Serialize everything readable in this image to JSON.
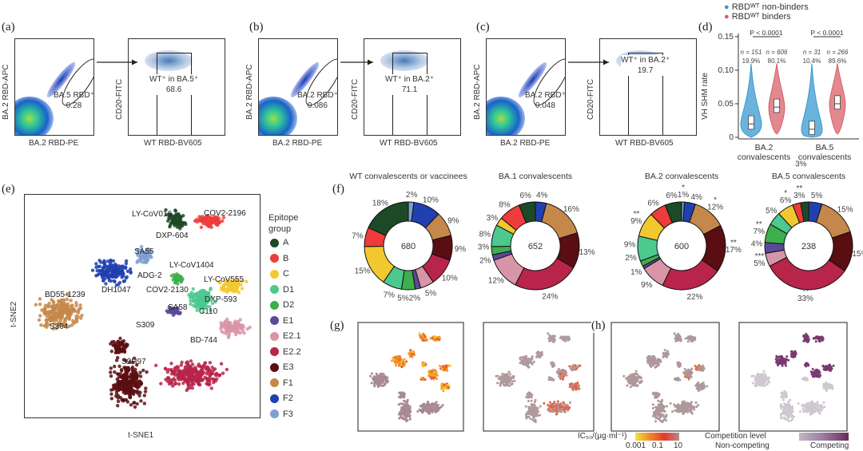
{
  "panels": {
    "a": {
      "label": "(a)",
      "gate_name": "BA.5 RBD⁺",
      "gate_value": "0.28",
      "sub_gate_name": "WT⁺ in BA.5⁺",
      "sub_gate_value": "68.6",
      "x1": "BA.2 RBD-PE",
      "y1": "BA.2 RBD-APC",
      "x2": "WT RBD-BV605",
      "y2": "CD20-FITC"
    },
    "b": {
      "label": "(b)",
      "gate_name": "BA.2 RBD⁺",
      "gate_value": "0.086",
      "sub_gate_name": "WT⁺ in BA.2⁺",
      "sub_gate_value": "71.1",
      "x1": "BA.2 RBD-PE",
      "y1": "BA.2 RBD-APC",
      "x2": "WT RBD-BV605",
      "y2": "CD20-FITC"
    },
    "c": {
      "label": "(c)",
      "gate_name": "BA.2 RBD⁺",
      "gate_value": "0.048",
      "sub_gate_name": "WT⁺ in BA.2⁺",
      "sub_gate_value": "19.7",
      "x1": "BA.2 RBD-PE",
      "y1": "BA.2 RBD-APC",
      "x2": "WT RBD-BV605",
      "y2": "CD20-FITC"
    },
    "d": {
      "label": "(d)",
      "legend": [
        "RBDᵂᵀ non-binders",
        "RBDᵂᵀ binders"
      ],
      "ylabel": "VH SHM rate",
      "yticks": [
        "0",
        "0.05",
        "0.10",
        "0.15"
      ],
      "groups": [
        {
          "name1": "BA.2",
          "name2": "convalescents",
          "p": "P < 0.0001",
          "n": [
            "n = 151",
            "n = 606"
          ],
          "pct": [
            "19.9%",
            "80.1%"
          ],
          "median": [
            0.02,
            0.045
          ]
        },
        {
          "name1": "BA.5",
          "name2": "convalescents",
          "p": "P < 0.0001",
          "n": [
            "n = 31",
            "n = 266"
          ],
          "pct": [
            "10.4%",
            "89.6%"
          ],
          "median": [
            0.012,
            0.05
          ]
        }
      ],
      "colors": [
        "#3a9ad0",
        "#d9606a"
      ]
    },
    "e": {
      "label": "(e)",
      "xlabel": "t-SNE1",
      "ylabel": "t-SNE2",
      "legend_title1": "Epitope",
      "legend_title2": "group",
      "annotations": [
        "LY-CoV016",
        "COV2-2196",
        "DXP-604",
        "SA55",
        "ADG-2",
        "DH1047",
        "LY-CoV1404",
        "LY-CoV555",
        "COV2-2130",
        "DXP-593",
        "BD55-1239",
        "SA58",
        "C110",
        "S309",
        "S304",
        "BD-744",
        "S2H97"
      ]
    },
    "f": {
      "label": "(f)"
    },
    "g": {
      "label": "(g)"
    },
    "h": {
      "label": "(h)"
    },
    "colorbars": {
      "ic50_label": "IC₅₀/(μg·ml⁻¹)",
      "ic50_ticks": [
        "0.001",
        "0.1",
        "10"
      ],
      "comp_label": "Competition level",
      "comp_low": "Non-competing",
      "comp_high": "Competing"
    }
  },
  "epitope_groups": [
    {
      "name": "A",
      "color": "#1c4a27"
    },
    {
      "name": "B",
      "color": "#ee3b3b"
    },
    {
      "name": "C",
      "color": "#f2c830"
    },
    {
      "name": "D1",
      "color": "#4dc88f"
    },
    {
      "name": "D2",
      "color": "#3fae4d"
    },
    {
      "name": "E1",
      "color": "#5a4a9a"
    },
    {
      "name": "E2.1",
      "color": "#d895a8"
    },
    {
      "name": "E2.2",
      "color": "#b8244a"
    },
    {
      "name": "E3",
      "color": "#5a0e12"
    },
    {
      "name": "F1",
      "color": "#c5884a"
    },
    {
      "name": "F2",
      "color": "#2040b0"
    },
    {
      "name": "F3",
      "color": "#7f9fd0"
    }
  ],
  "chart_data": {
    "type": "pie",
    "slice_order_clockwise_from_top": [
      "F3",
      "F2",
      "F1",
      "E3",
      "E2.2",
      "E2.1",
      "E1",
      "D2",
      "D1",
      "C",
      "B",
      "A"
    ],
    "donuts": [
      {
        "title": "WT convalescents or vaccinees",
        "total": "680",
        "values": [
          2,
          10,
          9,
          9,
          10,
          5,
          2,
          5,
          7,
          15,
          7,
          18
        ],
        "stars": [
          "",
          "",
          "",
          "",
          "",
          "",
          "",
          "",
          "",
          "",
          "",
          ""
        ]
      },
      {
        "title": "BA.1 convalescents",
        "total": "652",
        "values": [
          0,
          4,
          16,
          13,
          24,
          12,
          2,
          3,
          8,
          3,
          8,
          6
        ],
        "stars": [
          "",
          "",
          "",
          "",
          "",
          "",
          "",
          "",
          "",
          "",
          "",
          ""
        ]
      },
      {
        "title": "BA.2 convalescents",
        "total": "600",
        "values": [
          1,
          4,
          12,
          17,
          22,
          9,
          1,
          2,
          9,
          9,
          6,
          6
        ],
        "stars": [
          "*",
          "",
          "*",
          "**",
          "",
          "",
          "",
          "",
          "",
          "**",
          "",
          ""
        ]
      },
      {
        "title": "BA.5 convalescents",
        "total": "238",
        "values": [
          0,
          5,
          15,
          15,
          33,
          5,
          4,
          7,
          5,
          6,
          3,
          3
        ],
        "stars": [
          "",
          "",
          "",
          "",
          "**",
          "***",
          "",
          "**",
          "",
          "*",
          "**",
          ""
        ]
      }
    ]
  }
}
